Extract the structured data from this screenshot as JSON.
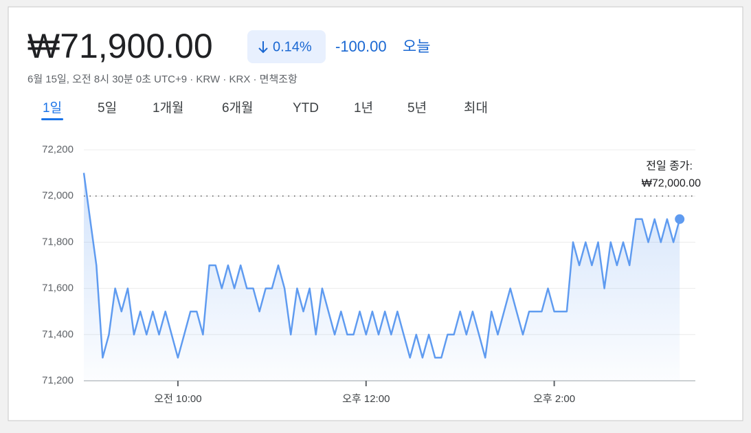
{
  "header": {
    "price": "₩71,900.00",
    "change_percent": "0.14%",
    "change": "-100.00",
    "change_period": "오늘",
    "subtitle": "6월 15일, 오전 8시 30분 0초 UTC+9 · KRW · KRX · 면책조항"
  },
  "tabs": {
    "items": [
      "1일",
      "5일",
      "1개월",
      "6개월",
      "YTD",
      "1년",
      "5년",
      "최대"
    ],
    "active": 0
  },
  "chart_data": {
    "type": "line",
    "color": "#5f9bf0",
    "grid": true,
    "x": [
      540,
      544,
      548,
      552,
      556,
      560,
      564,
      568,
      572,
      576,
      580,
      584,
      588,
      592,
      596,
      600,
      604,
      608,
      612,
      616,
      620,
      624,
      628,
      632,
      636,
      640,
      644,
      648,
      652,
      656,
      660,
      664,
      668,
      672,
      676,
      680,
      684,
      688,
      692,
      696,
      700,
      704,
      708,
      712,
      716,
      720,
      724,
      728,
      732,
      736,
      740,
      744,
      748,
      752,
      756,
      760,
      764,
      768,
      772,
      776,
      780,
      784,
      788,
      792,
      796,
      800,
      804,
      808,
      812,
      816,
      820,
      824,
      828,
      832,
      836,
      840,
      844,
      848,
      852,
      856,
      860,
      864,
      868,
      872,
      876,
      880,
      884,
      888,
      892,
      896,
      900,
      904,
      908,
      912,
      916,
      920
    ],
    "values": [
      72100,
      71900,
      71700,
      71300,
      71400,
      71600,
      71500,
      71600,
      71400,
      71500,
      71400,
      71500,
      71400,
      71500,
      71400,
      71300,
      71400,
      71500,
      71500,
      71400,
      71700,
      71700,
      71600,
      71700,
      71600,
      71700,
      71600,
      71600,
      71500,
      71600,
      71600,
      71700,
      71600,
      71400,
      71600,
      71500,
      71600,
      71400,
      71600,
      71500,
      71400,
      71500,
      71400,
      71400,
      71500,
      71400,
      71500,
      71400,
      71500,
      71400,
      71500,
      71400,
      71300,
      71400,
      71300,
      71400,
      71300,
      71300,
      71400,
      71400,
      71500,
      71400,
      71500,
      71400,
      71300,
      71500,
      71400,
      71500,
      71600,
      71500,
      71400,
      71500,
      71500,
      71500,
      71600,
      71500,
      71500,
      71500,
      71800,
      71700,
      71800,
      71700,
      71800,
      71600,
      71800,
      71700,
      71800,
      71700,
      71900,
      71900,
      71800,
      71900,
      71800,
      71900,
      71800,
      71900
    ],
    "xlim": [
      540,
      930
    ],
    "xticks": [
      {
        "value": 600,
        "label": "오전 10:00"
      },
      {
        "value": 720,
        "label": "오후 12:00"
      },
      {
        "value": 840,
        "label": "오후 2:00"
      }
    ],
    "ylim": [
      71200,
      72200
    ],
    "yticks": [
      {
        "value": 71200,
        "label": "71,200"
      },
      {
        "value": 71400,
        "label": "71,400"
      },
      {
        "value": 71600,
        "label": "71,600"
      },
      {
        "value": 71800,
        "label": "71,800"
      },
      {
        "value": 72000,
        "label": "72,000"
      },
      {
        "value": 72200,
        "label": "72,200"
      }
    ],
    "reference_line": {
      "value": 72000,
      "label": "전일 종가:",
      "value_label": "₩72,000.00"
    }
  }
}
